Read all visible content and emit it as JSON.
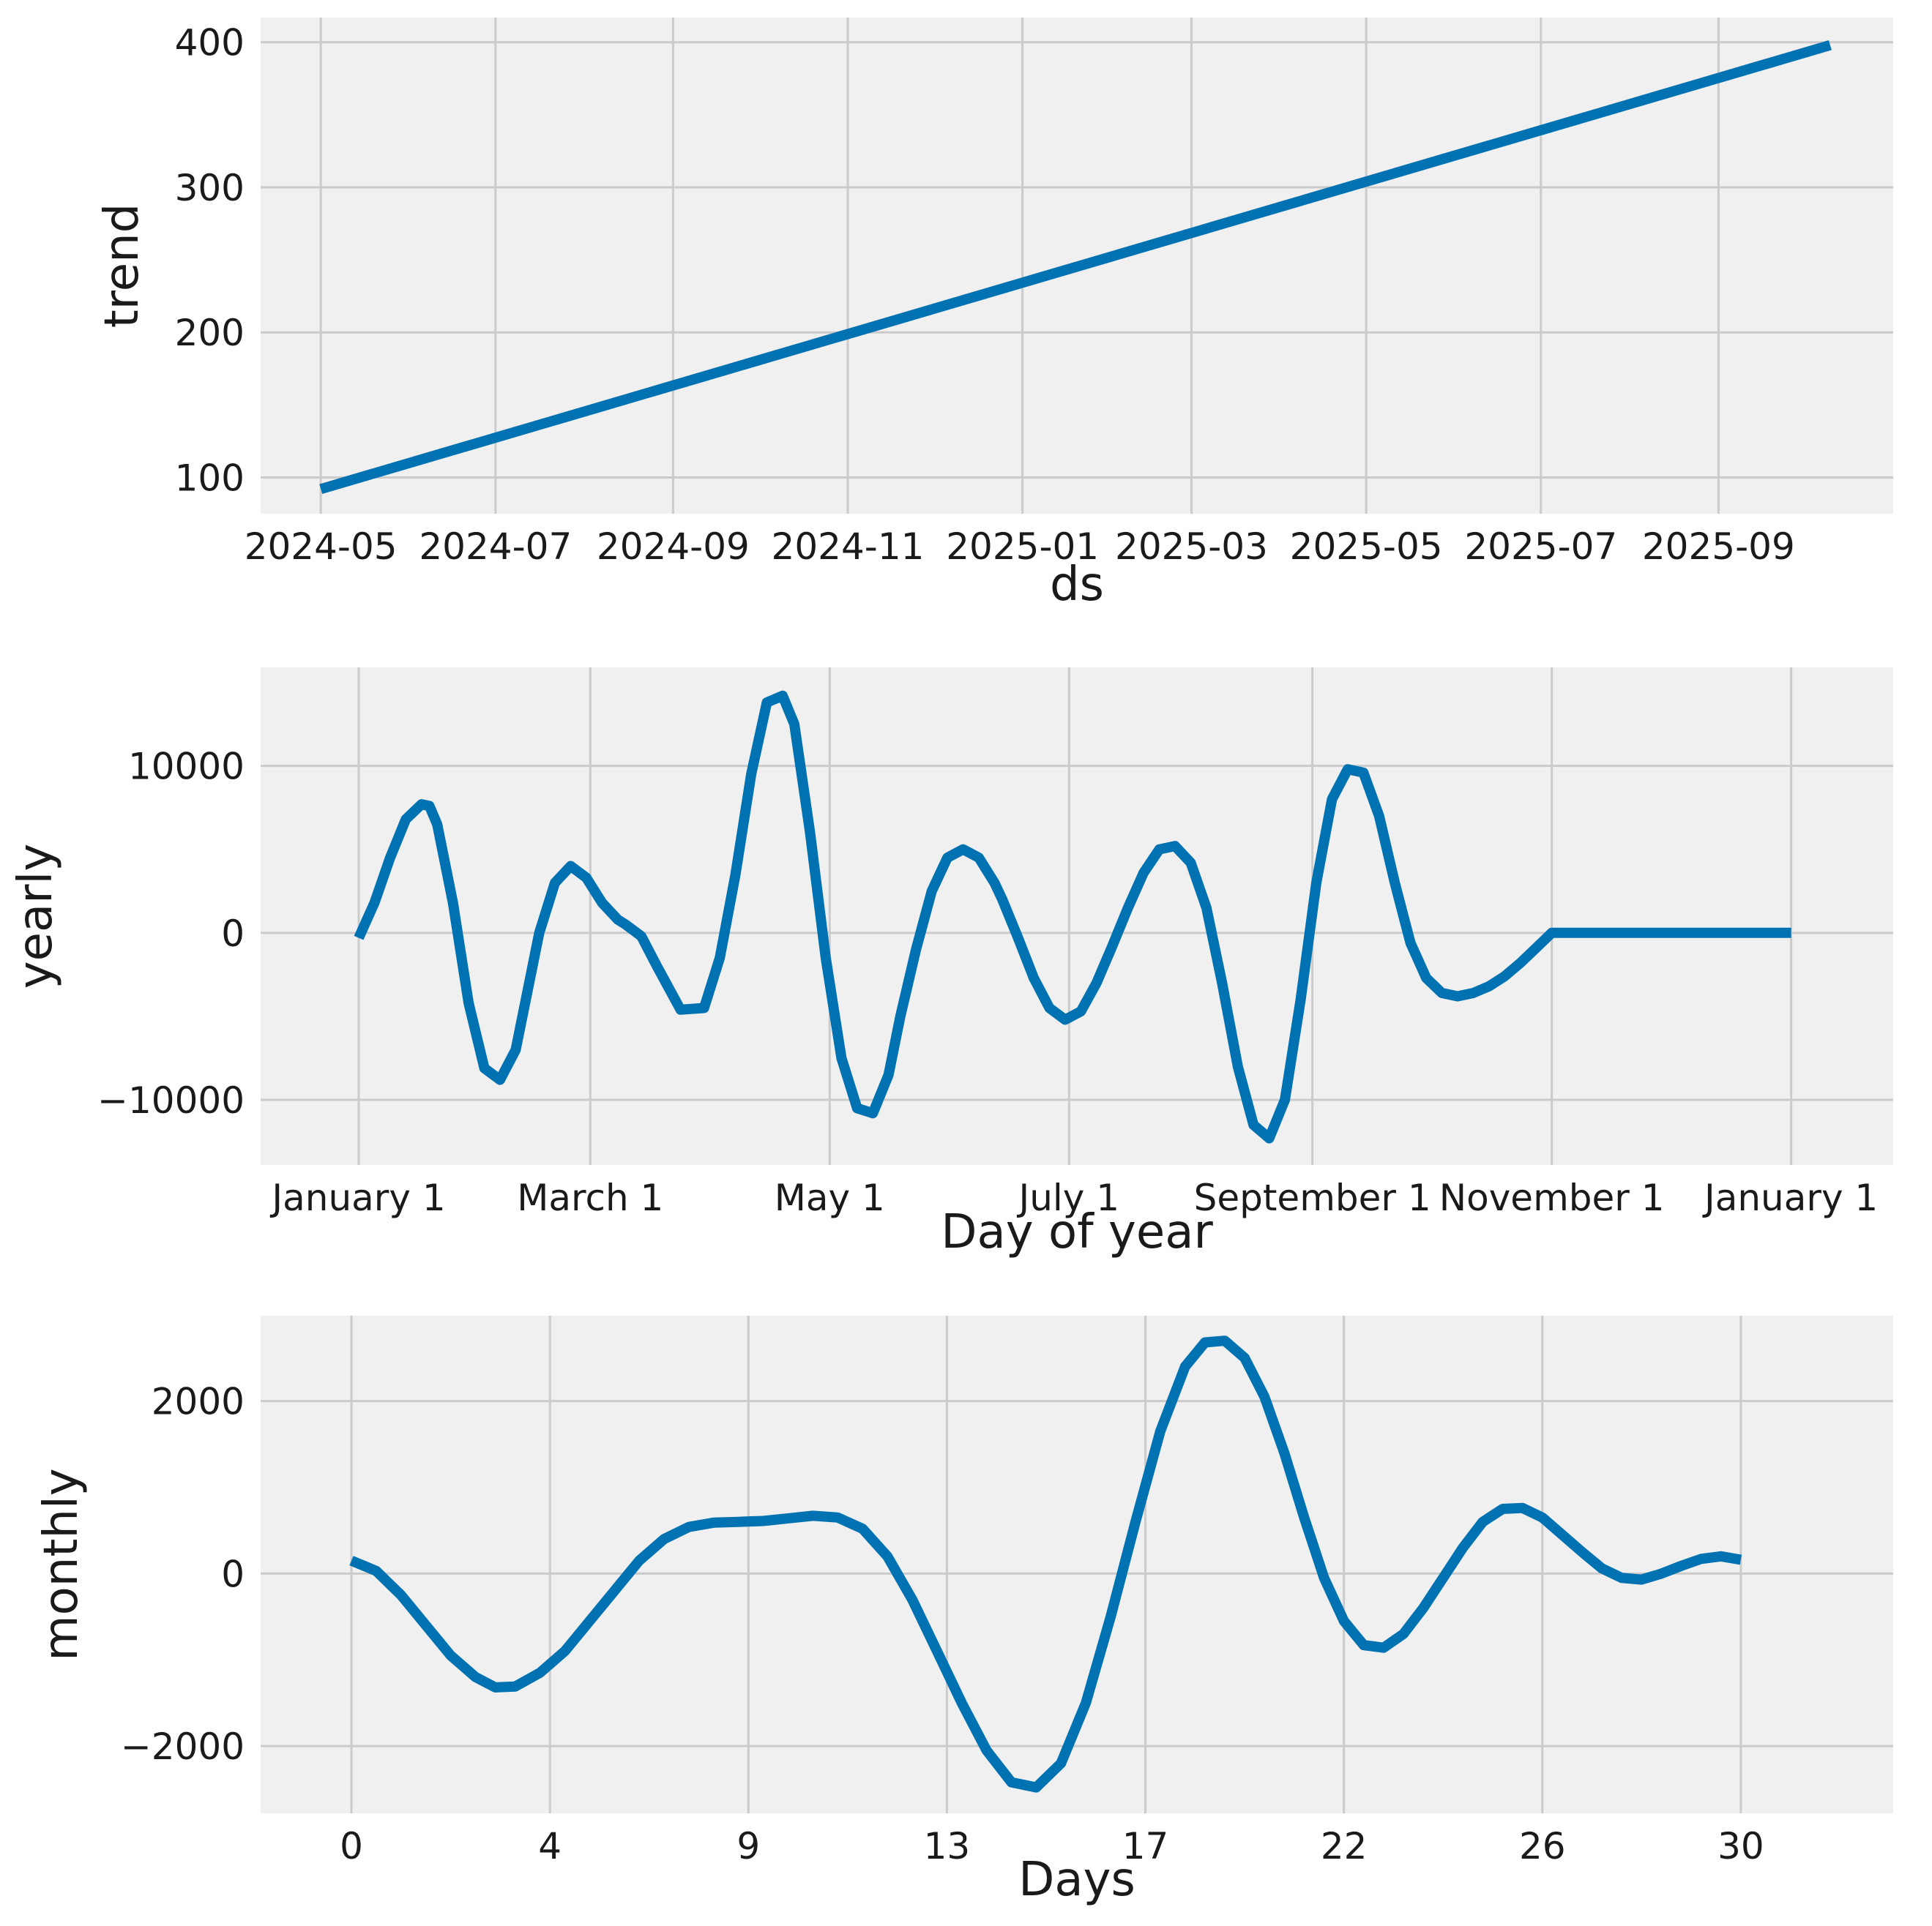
{
  "colors": {
    "line": "#0072b2",
    "plot_background": "#f0f0f0",
    "grid": "#cbcbcb"
  },
  "chart_data": [
    {
      "type": "line",
      "ylabel": "trend",
      "xlabel": "ds",
      "x_axis_type": "date",
      "xlim": [
        "2024-04-10",
        "2025-11-01"
      ],
      "ylim": [
        75,
        417
      ],
      "grid": true,
      "x_ticks": [
        {
          "value": "2024-05-01",
          "label": "2024-05"
        },
        {
          "value": "2024-07-01",
          "label": "2024-07"
        },
        {
          "value": "2024-09-01",
          "label": "2024-09"
        },
        {
          "value": "2024-11-01",
          "label": "2024-11"
        },
        {
          "value": "2025-01-01",
          "label": "2025-01"
        },
        {
          "value": "2025-03-01",
          "label": "2025-03"
        },
        {
          "value": "2025-05-01",
          "label": "2025-05"
        },
        {
          "value": "2025-07-01",
          "label": "2025-07"
        },
        {
          "value": "2025-09-01",
          "label": "2025-09"
        }
      ],
      "y_ticks": [
        100,
        200,
        300,
        400
      ],
      "series": [
        {
          "x": [
            "2024-05-01",
            "2025-10-10"
          ],
          "y": [
            92,
            398
          ]
        }
      ]
    },
    {
      "type": "line",
      "ylabel": "yearly",
      "xlabel": "Day of year",
      "xlim": [
        -25,
        391
      ],
      "ylim": [
        -13900,
        15900
      ],
      "grid": true,
      "x_ticks": [
        {
          "value": 0,
          "label": "January 1"
        },
        {
          "value": 59,
          "label": "March 1"
        },
        {
          "value": 120,
          "label": "May 1"
        },
        {
          "value": 181,
          "label": "July 1"
        },
        {
          "value": 243,
          "label": "September 1"
        },
        {
          "value": 304,
          "label": "November 1"
        },
        {
          "value": 365,
          "label": "January 1"
        }
      ],
      "y_ticks": [
        {
          "value": -10000,
          "label": "−10000"
        },
        {
          "value": 0,
          "label": "0"
        },
        {
          "value": 10000,
          "label": "10000"
        }
      ],
      "series": [
        {
          "x": [
            0,
            4,
            8,
            12,
            16,
            18,
            20,
            24,
            28,
            32,
            36,
            40,
            43,
            46,
            50,
            54,
            58,
            62,
            66,
            68,
            72,
            76,
            82,
            88,
            92,
            96,
            100,
            104,
            108,
            111,
            115,
            119,
            123,
            127,
            131,
            135,
            138,
            142,
            146,
            150,
            154,
            158,
            162,
            164,
            168,
            172,
            176,
            180,
            184,
            188,
            192,
            196,
            200,
            204,
            208,
            212,
            216,
            220,
            224,
            228,
            232,
            236,
            240,
            244,
            248,
            252,
            256,
            260,
            264,
            268,
            272,
            276,
            280,
            284,
            288,
            292,
            296,
            300,
            304,
            308,
            312,
            316,
            318,
            320,
            324,
            328,
            332,
            336,
            340,
            344,
            348,
            352,
            356,
            360,
            365
          ],
          "y": [
            -300,
            1800,
            4500,
            6800,
            7700,
            7600,
            6500,
            1800,
            -4200,
            -8100,
            -8800,
            -7000,
            -3500,
            0,
            3000,
            4000,
            3300,
            1800,
            800,
            500,
            -200,
            -2000,
            -4600,
            -4500,
            -1500,
            3500,
            9500,
            13800,
            14200,
            12500,
            6000,
            -1500,
            -7500,
            -10500,
            -10800,
            -8500,
            -5000,
            -1000,
            2500,
            4500,
            5000,
            4500,
            3000,
            2000,
            -300,
            -2700,
            -4500,
            -5200,
            -4700,
            -3000,
            -800,
            1500,
            3600,
            5000,
            5200,
            4200,
            1500,
            -3000,
            -8000,
            -11500,
            -12300,
            -10000,
            -4000,
            3000,
            8000,
            9800,
            9600,
            7000,
            3000,
            -600,
            -2700,
            -3600,
            -3800,
            -3600,
            -3200,
            -2600,
            -1800,
            -900,
            0,
            0,
            0,
            0,
            0,
            0,
            0,
            0,
            0,
            0,
            0,
            0,
            0,
            0,
            0,
            0,
            0
          ]
        }
      ]
    },
    {
      "type": "line",
      "ylabel": "monthly",
      "xlabel": "Days",
      "xlim": [
        -1.83,
        31.07
      ],
      "ylim": [
        -2780,
        2990
      ],
      "grid": true,
      "x_ticks": [
        {
          "value": 0,
          "label": "0"
        },
        {
          "value": 4.0,
          "label": "4"
        },
        {
          "value": 8.0,
          "label": "9"
        },
        {
          "value": 12.0,
          "label": "13"
        },
        {
          "value": 16.0,
          "label": "17"
        },
        {
          "value": 20.0,
          "label": "22"
        },
        {
          "value": 24.0,
          "label": "26"
        },
        {
          "value": 28.0,
          "label": "30"
        }
      ],
      "y_ticks": [
        {
          "value": -2000,
          "label": "−2000"
        },
        {
          "value": 0,
          "label": "0"
        },
        {
          "value": 2000,
          "label": "2000"
        }
      ],
      "series": [
        {
          "x": [
            0,
            0.5,
            1,
            1.5,
            2,
            2.5,
            2.9,
            3.3,
            3.8,
            4.3,
            4.8,
            5.3,
            5.8,
            6.3,
            6.8,
            7.3,
            7.8,
            8.3,
            8.8,
            9.3,
            9.8,
            10.3,
            10.8,
            11.3,
            11.8,
            12.3,
            12.8,
            13.3,
            13.8,
            14.3,
            14.8,
            15.3,
            15.8,
            16.3,
            16.8,
            17.2,
            17.6,
            18.0,
            18.4,
            18.8,
            19.2,
            19.6,
            20.0,
            20.4,
            20.8,
            21.2,
            21.6,
            22.0,
            22.4,
            22.8,
            23.2,
            23.6,
            24.0,
            24.4,
            24.8,
            25.2,
            25.6,
            26.0,
            26.4,
            26.8,
            27.2,
            27.6,
            28.0
          ],
          "y": [
            150,
            30,
            -250,
            -600,
            -950,
            -1200,
            -1320,
            -1310,
            -1150,
            -900,
            -550,
            -200,
            150,
            400,
            540,
            590,
            600,
            610,
            640,
            670,
            650,
            520,
            200,
            -300,
            -900,
            -1500,
            -2050,
            -2420,
            -2480,
            -2200,
            -1500,
            -500,
            600,
            1650,
            2400,
            2680,
            2700,
            2500,
            2050,
            1400,
            650,
            -50,
            -550,
            -830,
            -860,
            -700,
            -400,
            -50,
            300,
            600,
            750,
            760,
            650,
            450,
            250,
            60,
            -50,
            -70,
            0,
            90,
            170,
            200,
            160
          ]
        }
      ]
    }
  ]
}
